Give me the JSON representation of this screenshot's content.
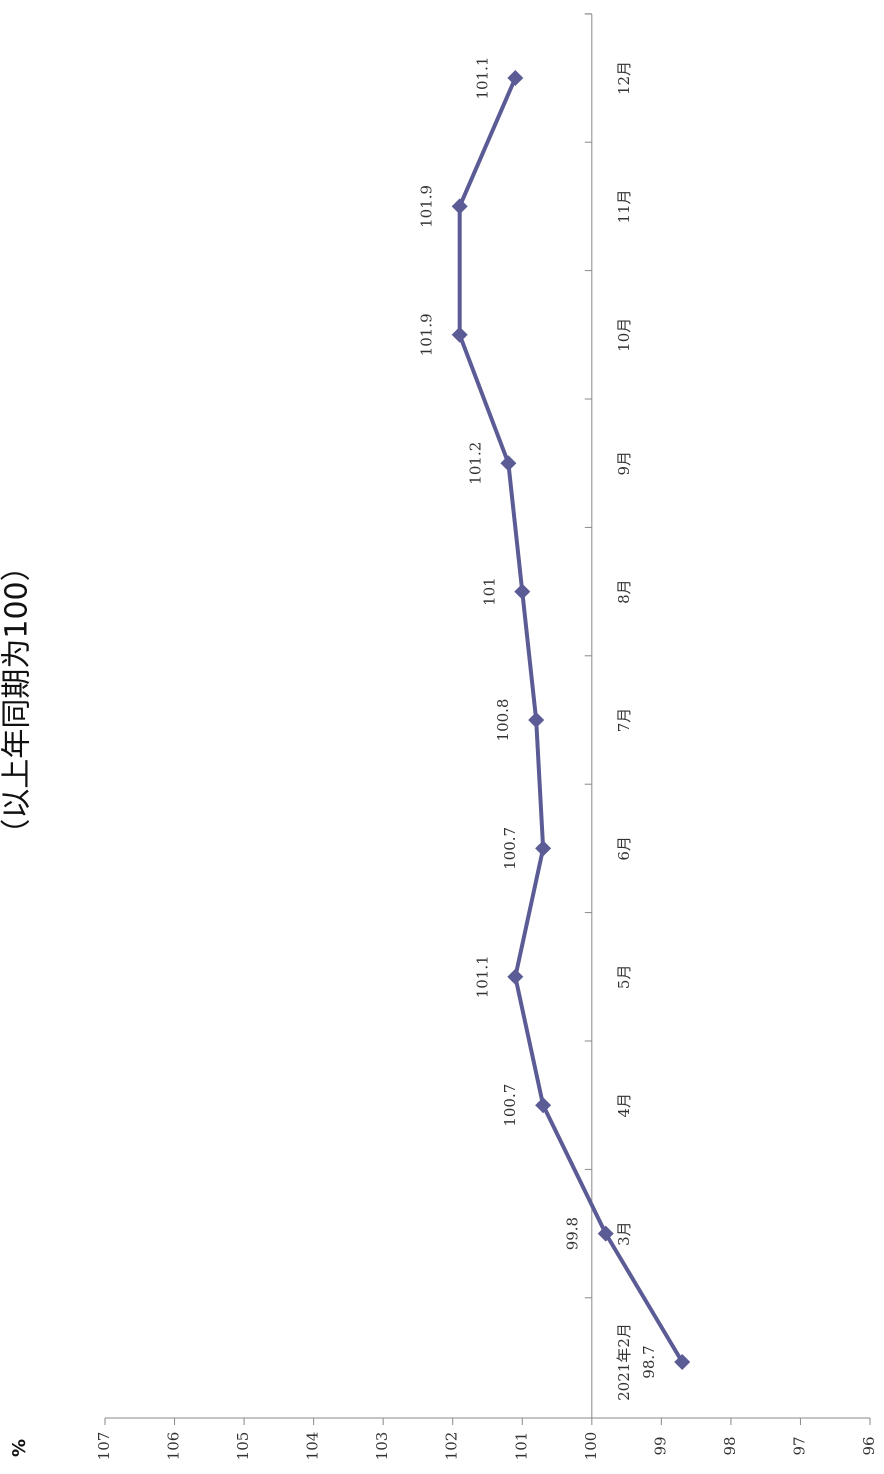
{
  "chart_data": {
    "type": "line",
    "title": "（以上年同期为100）",
    "y_label": "%",
    "categories": [
      "2021年2月",
      "3月",
      "4月",
      "5月",
      "6月",
      "7月",
      "8月",
      "9月",
      "10月",
      "11月",
      "12月"
    ],
    "values": [
      98.7,
      99.8,
      100.7,
      101.1,
      100.7,
      100.8,
      101,
      101.2,
      101.9,
      101.9,
      101.1
    ],
    "color": "#5b5b95",
    "ylim": [
      96,
      107
    ],
    "yticks": [
      96,
      97,
      98,
      99,
      100,
      101,
      102,
      103,
      104,
      105,
      106,
      107
    ]
  }
}
